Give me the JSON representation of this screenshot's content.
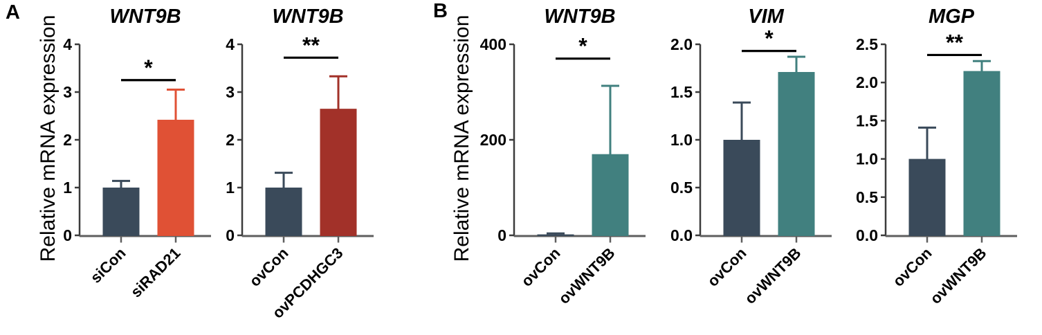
{
  "figure": {
    "panels": [
      {
        "label": "A"
      },
      {
        "label": "B"
      }
    ]
  },
  "colors": {
    "dark_slate": "#3A4A5A",
    "orange_red": "#E05135",
    "brick_red": "#A23129",
    "teal": "#41807F",
    "y_axis": "#3B3B3B",
    "x_axis": "#5E5E5E",
    "significance": "#000000"
  },
  "chart_data": [
    {
      "type": "bar",
      "panel": "A",
      "title": "WNT9B",
      "ylabel": "Relative mRNA expression",
      "xlabel": "",
      "categories": [
        "siCon",
        "siRAD21"
      ],
      "values": [
        1.0,
        2.42
      ],
      "errors_plus": [
        0.14,
        0.63
      ],
      "bar_colors": [
        "#3A4A5A",
        "#E05135"
      ],
      "ylim": [
        0,
        4
      ],
      "ytick_values": [
        0,
        1,
        2,
        3,
        4
      ],
      "ytick_labels": [
        "0",
        "1",
        "2",
        "3",
        "4"
      ],
      "significance": {
        "label": "*",
        "line_y": 3.25
      },
      "grid": false,
      "legend": false
    },
    {
      "type": "bar",
      "panel": "A",
      "title": "WNT9B",
      "ylabel": "",
      "xlabel": "",
      "categories": [
        "ovCon",
        "ovPCDHGC3"
      ],
      "values": [
        1.0,
        2.65
      ],
      "errors_plus": [
        0.31,
        0.68
      ],
      "bar_colors": [
        "#3A4A5A",
        "#A23129"
      ],
      "ylim": [
        0,
        4
      ],
      "ytick_values": [
        0,
        1,
        2,
        3,
        4
      ],
      "ytick_labels": [
        "0",
        "1",
        "2",
        "3",
        "4"
      ],
      "significance": {
        "label": "**",
        "line_y": 3.72
      },
      "grid": false,
      "legend": false
    },
    {
      "type": "bar",
      "panel": "B",
      "title": "WNT9B",
      "ylabel": "Relative mRNA expression",
      "xlabel": "",
      "categories": [
        "ovCon",
        "ovWNT9B"
      ],
      "values": [
        2,
        170
      ],
      "errors_plus": [
        2,
        143
      ],
      "bar_colors": [
        "#3A4A5A",
        "#41807F"
      ],
      "ylim": [
        0,
        400
      ],
      "ytick_values": [
        0,
        200,
        400
      ],
      "ytick_labels": [
        "0",
        "200",
        "400"
      ],
      "significance": {
        "label": "*",
        "line_y": 370
      },
      "grid": false,
      "legend": false
    },
    {
      "type": "bar",
      "panel": "B",
      "title": "VIM",
      "ylabel": "",
      "xlabel": "",
      "categories": [
        "ovCon",
        "ovWNT9B"
      ],
      "values": [
        1.0,
        1.71
      ],
      "errors_plus": [
        0.39,
        0.16
      ],
      "bar_colors": [
        "#3A4A5A",
        "#41807F"
      ],
      "ylim": [
        0,
        2
      ],
      "ytick_values": [
        0,
        0.5,
        1,
        1.5,
        2
      ],
      "ytick_labels": [
        "0.0",
        "0.5",
        "1.0",
        "1.5",
        "2.0"
      ],
      "significance": {
        "label": "*",
        "line_y": 1.93
      },
      "grid": false,
      "legend": false
    },
    {
      "type": "bar",
      "panel": "B",
      "title": "MGP",
      "ylabel": "",
      "xlabel": "",
      "categories": [
        "ovCon",
        "ovWNT9B"
      ],
      "values": [
        1.0,
        2.15
      ],
      "errors_plus": [
        0.41,
        0.13
      ],
      "bar_colors": [
        "#3A4A5A",
        "#41807F"
      ],
      "ylim": [
        0,
        2.5
      ],
      "ytick_values": [
        0,
        0.5,
        1,
        1.5,
        2,
        2.5
      ],
      "ytick_labels": [
        "0.0",
        "0.5",
        "1.0",
        "1.5",
        "2.0",
        "2.5"
      ],
      "significance": {
        "label": "**",
        "line_y": 2.36
      },
      "grid": false,
      "legend": false
    }
  ]
}
